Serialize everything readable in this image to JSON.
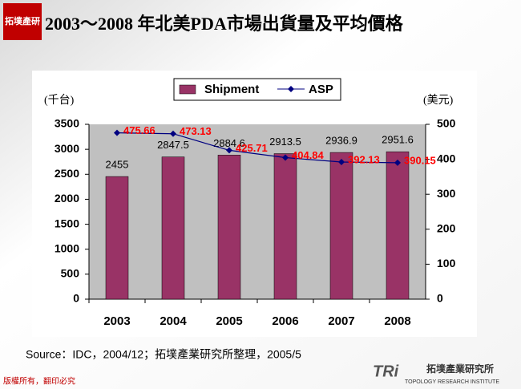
{
  "logo": "拓墣產研",
  "chart_data": {
    "type": "bar",
    "title": "2003～2008 年北美PDA市場出貨量及平均價格",
    "y_label": "(千台)",
    "y2_label": "(美元)",
    "categories": [
      "2003",
      "2004",
      "2005",
      "2006",
      "2007",
      "2008"
    ],
    "series": [
      {
        "name": "Shipment",
        "type": "bar",
        "color": "#993366",
        "values": [
          2455,
          2847.5,
          2884.6,
          2913.5,
          2936.9,
          2951.6
        ]
      },
      {
        "name": "ASP",
        "type": "line",
        "axis": "y2",
        "color": "#000080",
        "label_color": "#ff0000",
        "values": [
          475.66,
          473.13,
          425.71,
          404.84,
          392.13,
          390.15
        ]
      }
    ],
    "ylim": [
      0,
      3500
    ],
    "yticks": [
      0,
      500,
      1000,
      1500,
      2000,
      2500,
      3000,
      3500
    ],
    "y2lim": [
      0,
      500
    ],
    "y2ticks": [
      0,
      100,
      200,
      300,
      400,
      500
    ],
    "legend": "top",
    "source": "Source：IDC，2004/12；拓墣產業研究所整理，2005/5"
  },
  "footer": {
    "copyright": "版權所有，翻印必究",
    "brand": "拓墣產業研究所",
    "brand_en": "TOPOLOGY RESEARCH INSTITUTE",
    "brand_mark": "TRi"
  }
}
